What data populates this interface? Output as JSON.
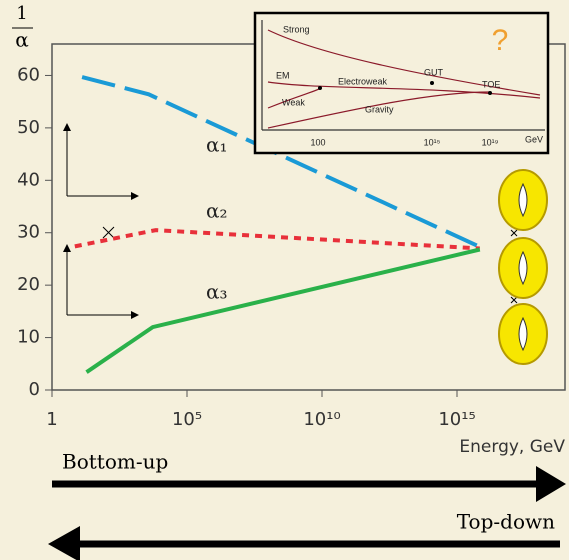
{
  "chart_data": {
    "type": "line",
    "ylabel_numerator": "1",
    "ylabel_denominator": "α",
    "xlabel": "Energy, GeV",
    "xscale": "log",
    "xlim": [
      1,
      1e+19
    ],
    "ylim": [
      0,
      66
    ],
    "xticks": [
      1,
      {
        "value": 100000,
        "label": "10⁵"
      },
      {
        "value": 10000000000,
        "label": "10¹⁰"
      },
      {
        "value": 1000000000000000,
        "label": "10¹⁵"
      }
    ],
    "yticks": [
      0,
      10,
      20,
      30,
      40,
      50,
      60
    ],
    "series": [
      {
        "name": "α₁",
        "color": "#1a9ad6",
        "style": "dashed",
        "x": [
          13,
          3800,
          7000000000000000
        ],
        "values": [
          59.7,
          56.4,
          27.3
        ]
      },
      {
        "name": "α₂",
        "color": "#e8303a",
        "style": "dotted",
        "x": [
          7,
          7000,
          7000000000000000
        ],
        "values": [
          27.4,
          30.5,
          27
        ]
      },
      {
        "name": "α₃",
        "color": "#2ab14a",
        "style": "solid",
        "x": [
          19,
          5400,
          7000000000000000
        ],
        "values": [
          3.4,
          12,
          26.8
        ]
      }
    ],
    "arrows": {
      "bottom_up": "Bottom-up",
      "top_down": "Top-down"
    },
    "inset": {
      "labels": [
        "Strong",
        "EM",
        "Electroweak",
        "GUT",
        "TOE",
        "Weak",
        "Gravity"
      ],
      "xticks": [
        "100",
        "10¹⁵",
        "10¹⁹",
        "GeV"
      ],
      "mark": "?"
    }
  }
}
